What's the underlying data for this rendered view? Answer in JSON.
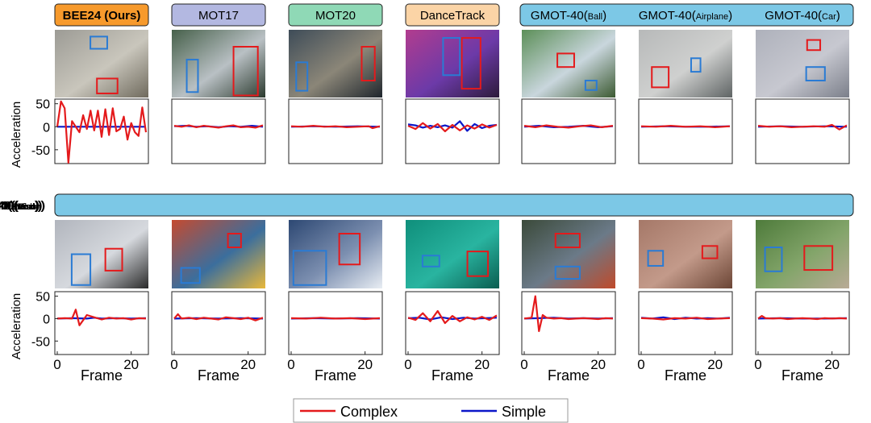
{
  "figure": {
    "ylabel": "Acceleration",
    "xlabel": "Frame",
    "yticks": [
      50,
      0,
      -50
    ],
    "xticks": [
      0,
      20
    ],
    "legend": [
      {
        "label": "Complex",
        "color": "#e41a1c"
      },
      {
        "label": "Simple",
        "color": "#0b17c9"
      }
    ],
    "top_bar_title": "GMOT-40",
    "colors": {
      "ours": "#f79a2c",
      "mot17": "#b3b8e1",
      "mot20": "#8fd9b6",
      "dance": "#fbd4a6",
      "gmot": "#7cc8e6",
      "complex": "#e41a1c",
      "simple": "#0b17c9"
    }
  },
  "chart_data": [
    {
      "type": "line",
      "dataset": "BEE24 (Ours)",
      "title": "BEE24 (Ours)",
      "xlabel": "Frame",
      "ylabel": "Acceleration",
      "xlim": [
        0,
        24
      ],
      "ylim": [
        -80,
        60
      ],
      "series": [
        {
          "name": "Complex",
          "x": [
            0,
            1,
            2,
            3,
            4,
            5,
            6,
            7,
            8,
            9,
            10,
            11,
            12,
            13,
            14,
            15,
            16,
            17,
            18,
            19,
            20,
            21,
            22,
            23,
            24
          ],
          "values": [
            0,
            55,
            40,
            -78,
            12,
            0,
            -12,
            25,
            -5,
            35,
            -8,
            35,
            -22,
            38,
            -18,
            40,
            -10,
            -5,
            22,
            -28,
            8,
            -12,
            -20,
            42,
            -12
          ]
        },
        {
          "name": "Simple",
          "x": [
            0,
            24
          ],
          "values": [
            0,
            0
          ]
        }
      ]
    },
    {
      "type": "line",
      "dataset": "MOT17",
      "title": "MOT17",
      "xlim": [
        0,
        24
      ],
      "ylim": [
        -80,
        60
      ],
      "series": [
        {
          "name": "Complex",
          "x": [
            0,
            2,
            4,
            6,
            8,
            10,
            12,
            14,
            16,
            18,
            20,
            22,
            24
          ],
          "values": [
            2,
            0,
            3,
            -1,
            2,
            0,
            -2,
            1,
            3,
            -1,
            0,
            -2,
            3
          ]
        },
        {
          "name": "Simple",
          "x": [
            0,
            3,
            6,
            9,
            12,
            15,
            18,
            21,
            24
          ],
          "values": [
            1,
            2,
            0,
            1,
            -1,
            1,
            0,
            2,
            0
          ]
        }
      ]
    },
    {
      "type": "line",
      "dataset": "MOT20",
      "title": "MOT20",
      "xlim": [
        0,
        24
      ],
      "ylim": [
        -80,
        60
      ],
      "series": [
        {
          "name": "Complex",
          "x": [
            0,
            3,
            6,
            9,
            12,
            15,
            18,
            21,
            22,
            24
          ],
          "values": [
            1,
            0,
            2,
            0,
            1,
            -1,
            0,
            1,
            -3,
            1
          ]
        },
        {
          "name": "Simple",
          "x": [
            0,
            6,
            12,
            18,
            24
          ],
          "values": [
            0,
            1,
            0,
            1,
            0
          ]
        }
      ]
    },
    {
      "type": "line",
      "dataset": "DanceTrack",
      "title": "DanceTrack",
      "xlim": [
        0,
        24
      ],
      "ylim": [
        -80,
        60
      ],
      "series": [
        {
          "name": "Complex",
          "x": [
            0,
            2,
            4,
            6,
            8,
            10,
            12,
            14,
            16,
            18,
            20,
            22,
            24
          ],
          "values": [
            2,
            -5,
            8,
            -4,
            6,
            -10,
            4,
            -8,
            3,
            -4,
            5,
            -2,
            4
          ]
        },
        {
          "name": "Simple",
          "x": [
            0,
            2,
            4,
            6,
            8,
            10,
            12,
            14,
            16,
            18,
            20,
            22,
            24
          ],
          "values": [
            5,
            3,
            -2,
            2,
            -1,
            3,
            -2,
            12,
            -9,
            6,
            -3,
            2,
            4
          ]
        }
      ]
    },
    {
      "type": "line",
      "dataset": "GMOT-40(Ball)",
      "title": "GMOT-40(Ball)",
      "xlim": [
        0,
        24
      ],
      "ylim": [
        -80,
        60
      ],
      "series": [
        {
          "name": "Complex",
          "x": [
            0,
            3,
            6,
            9,
            12,
            15,
            18,
            21,
            24
          ],
          "values": [
            2,
            -1,
            3,
            0,
            -2,
            1,
            3,
            -1,
            2
          ]
        },
        {
          "name": "Simple",
          "x": [
            0,
            4,
            8,
            12,
            16,
            20,
            24
          ],
          "values": [
            0,
            2,
            -1,
            0,
            2,
            -1,
            1
          ]
        }
      ]
    },
    {
      "type": "line",
      "dataset": "GMOT-40(Airplane)",
      "title": "GMOT-40(Airplane)",
      "xlim": [
        0,
        24
      ],
      "ylim": [
        -80,
        60
      ],
      "series": [
        {
          "name": "Complex",
          "x": [
            0,
            4,
            8,
            12,
            16,
            20,
            24
          ],
          "values": [
            1,
            0,
            2,
            0,
            1,
            -1,
            1
          ]
        },
        {
          "name": "Simple",
          "x": [
            0,
            6,
            12,
            18,
            24
          ],
          "values": [
            0,
            1,
            0,
            0,
            1
          ]
        }
      ]
    },
    {
      "type": "line",
      "dataset": "GMOT-40(Car)",
      "title": "GMOT-40(Car)",
      "xlim": [
        0,
        24
      ],
      "ylim": [
        -80,
        60
      ],
      "series": [
        {
          "name": "Complex",
          "x": [
            0,
            3,
            6,
            9,
            12,
            15,
            18,
            20,
            22,
            24
          ],
          "values": [
            2,
            0,
            1,
            -1,
            0,
            1,
            0,
            4,
            -6,
            3
          ]
        },
        {
          "name": "Simple",
          "x": [
            0,
            6,
            12,
            18,
            24
          ],
          "values": [
            0,
            1,
            0,
            1,
            0
          ]
        }
      ]
    },
    {
      "type": "line",
      "dataset": "GMOT-40(Bird)",
      "title": "GMOT-40(Bird)",
      "xlabel": "Frame",
      "ylabel": "Acceleration",
      "xlim": [
        0,
        24
      ],
      "ylim": [
        -80,
        60
      ],
      "series": [
        {
          "name": "Complex",
          "x": [
            0,
            2,
            4,
            5,
            6,
            8,
            10,
            12,
            14,
            16,
            18,
            20,
            22,
            24
          ],
          "values": [
            0,
            1,
            0,
            20,
            -15,
            8,
            3,
            -2,
            2,
            0,
            1,
            -2,
            1,
            0
          ]
        },
        {
          "name": "Simple",
          "x": [
            0,
            4,
            8,
            10,
            12,
            16,
            20,
            24
          ],
          "values": [
            0,
            1,
            0,
            2,
            0,
            1,
            0,
            1
          ]
        }
      ]
    },
    {
      "type": "line",
      "dataset": "GMOT-40(Balloon)",
      "title": "GMOT-40(Balloon)",
      "xlim": [
        0,
        24
      ],
      "ylim": [
        -80,
        60
      ],
      "series": [
        {
          "name": "Complex",
          "x": [
            0,
            1,
            2,
            4,
            6,
            8,
            10,
            12,
            14,
            16,
            18,
            20,
            22,
            24
          ],
          "values": [
            0,
            10,
            0,
            2,
            -1,
            2,
            0,
            -2,
            3,
            1,
            -1,
            2,
            -4,
            2
          ]
        },
        {
          "name": "Simple",
          "x": [
            0,
            6,
            12,
            18,
            24
          ],
          "values": [
            0,
            1,
            0,
            1,
            0
          ]
        }
      ]
    },
    {
      "type": "line",
      "dataset": "GMOT-40(Boat)",
      "title": "GMOT-40(Boat)",
      "xlim": [
        0,
        24
      ],
      "ylim": [
        -80,
        60
      ],
      "series": [
        {
          "name": "Complex",
          "x": [
            0,
            4,
            8,
            12,
            16,
            20,
            24
          ],
          "values": [
            1,
            0,
            2,
            0,
            1,
            -1,
            1
          ]
        },
        {
          "name": "Simple",
          "x": [
            0,
            6,
            12,
            18,
            24
          ],
          "values": [
            0,
            1,
            0,
            1,
            0
          ]
        }
      ]
    },
    {
      "type": "line",
      "dataset": "GMOT-40(Fish)",
      "title": "GMOT-40(Fish)",
      "xlim": [
        0,
        24
      ],
      "ylim": [
        -80,
        60
      ],
      "series": [
        {
          "name": "Complex",
          "x": [
            0,
            2,
            4,
            6,
            8,
            10,
            12,
            14,
            16,
            18,
            20,
            22,
            24
          ],
          "values": [
            2,
            -3,
            12,
            -6,
            17,
            -10,
            6,
            -6,
            3,
            -2,
            4,
            -3,
            7
          ]
        },
        {
          "name": "Simple",
          "x": [
            0,
            3,
            6,
            9,
            12,
            15,
            18,
            21,
            24
          ],
          "values": [
            1,
            2,
            -2,
            3,
            -1,
            2,
            0,
            1,
            2
          ]
        }
      ]
    },
    {
      "type": "line",
      "dataset": "GMOT-40(Person)",
      "title": "GMOT-40(Person)",
      "xlim": [
        0,
        24
      ],
      "ylim": [
        -80,
        60
      ],
      "series": [
        {
          "name": "Complex",
          "x": [
            0,
            2,
            3,
            4,
            5,
            6,
            8,
            10,
            12,
            14,
            16,
            18,
            20,
            22,
            24
          ],
          "values": [
            0,
            2,
            50,
            -28,
            8,
            2,
            0,
            1,
            -1,
            0,
            1,
            0,
            -1,
            1,
            0
          ]
        },
        {
          "name": "Simple",
          "x": [
            0,
            4,
            8,
            12,
            16,
            20,
            24
          ],
          "values": [
            0,
            1,
            2,
            0,
            1,
            0,
            1
          ]
        }
      ]
    },
    {
      "type": "line",
      "dataset": "GMOT-40(Insect)",
      "title": "GMOT-40(Insect)",
      "xlim": [
        0,
        24
      ],
      "ylim": [
        -80,
        60
      ],
      "series": [
        {
          "name": "Complex",
          "x": [
            0,
            3,
            6,
            9,
            12,
            15,
            18,
            21,
            24
          ],
          "values": [
            1,
            0,
            -2,
            1,
            0,
            2,
            -1,
            0,
            1
          ]
        },
        {
          "name": "Simple",
          "x": [
            0,
            3,
            6,
            9,
            12,
            15,
            18,
            21,
            24
          ],
          "values": [
            2,
            0,
            3,
            -1,
            2,
            0,
            1,
            0,
            2
          ]
        }
      ]
    },
    {
      "type": "line",
      "dataset": "GMOT-40(Stock)",
      "title": "GMOT-40(Stock)",
      "xlim": [
        0,
        24
      ],
      "ylim": [
        -80,
        60
      ],
      "series": [
        {
          "name": "Complex",
          "x": [
            0,
            1,
            2,
            4,
            6,
            8,
            10,
            12,
            14,
            16,
            18,
            20,
            22,
            24
          ],
          "values": [
            0,
            6,
            1,
            0,
            1,
            -1,
            0,
            1,
            0,
            -1,
            1,
            0,
            1,
            0
          ]
        },
        {
          "name": "Simple",
          "x": [
            0,
            6,
            12,
            18,
            24
          ],
          "values": [
            0,
            1,
            0,
            0,
            1
          ]
        }
      ]
    }
  ]
}
